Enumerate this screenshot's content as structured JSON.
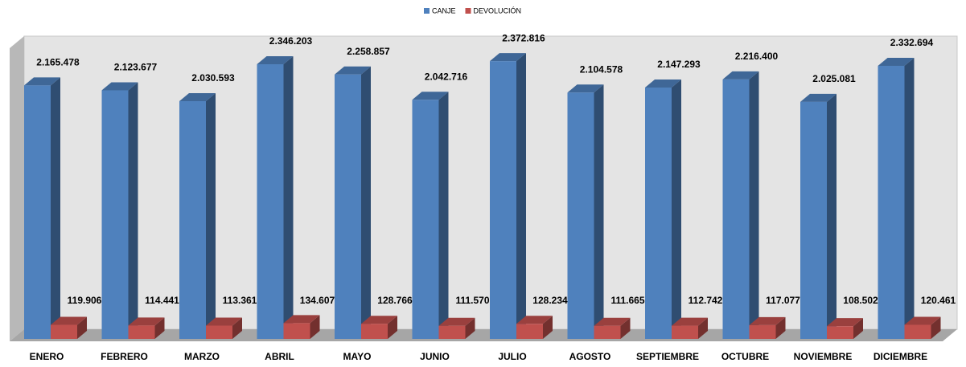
{
  "chart_data": {
    "type": "bar3d",
    "categories": [
      "ENERO",
      "FEBRERO",
      "MARZO",
      "ABRIL",
      "MAYO",
      "JUNIO",
      "JULIO",
      "AGOSTO",
      "SEPTIEMBRE",
      "OCTUBRE",
      "NOVIEMBRE",
      "DICIEMBRE"
    ],
    "series": [
      {
        "name": "CANJE",
        "color": "#4f81bd",
        "values": [
          2165478,
          2123677,
          2030593,
          2346203,
          2258857,
          2042716,
          2372816,
          2104578,
          2147293,
          2216400,
          2025081,
          2332694
        ],
        "value_labels": [
          "2.165.478",
          "2.123.677",
          "2.030.593",
          "2.346.203",
          "2.258.857",
          "2.042.716",
          "2.372.816",
          "2.104.578",
          "2.147.293",
          "2.216.400",
          "2.025.081",
          "2.332.694"
        ]
      },
      {
        "name": "DEVOLUCIÓN",
        "color": "#c0504d",
        "values": [
          119906,
          114441,
          113361,
          134607,
          128766,
          111570,
          128234,
          111665,
          112742,
          117077,
          108502,
          120461
        ],
        "value_labels": [
          "119.906",
          "114.441",
          "113.361",
          "134.607",
          "128.766",
          "111.570",
          "128.234",
          "111.665",
          "112.742",
          "117.077",
          "108.502",
          "120.461"
        ]
      }
    ],
    "legend": "top"
  }
}
